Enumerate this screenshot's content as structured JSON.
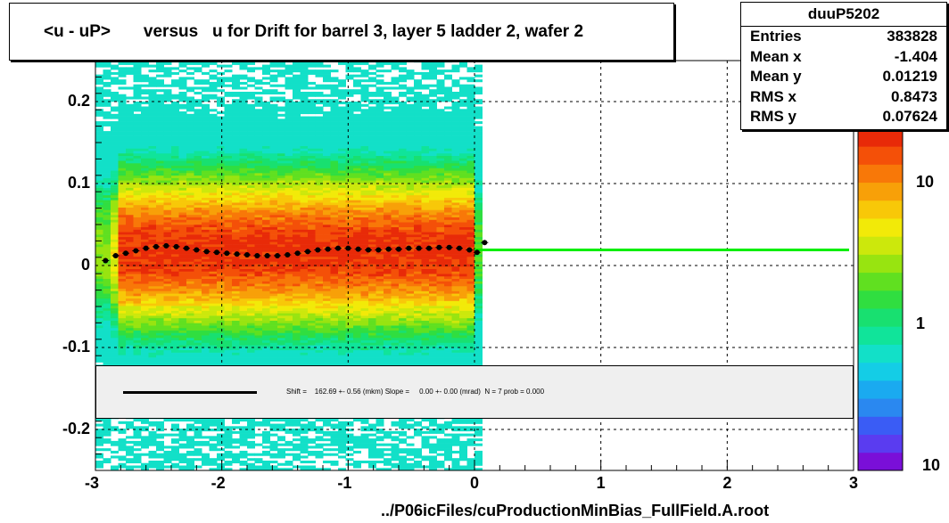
{
  "title": "<u - uP>       versus   u for Drift for barrel 3, layer 5 ladder 2, wafer 2",
  "stats": {
    "name": "duuP5202",
    "rows": [
      {
        "label": "Entries",
        "value": "383828"
      },
      {
        "label": "Mean x",
        "value": "-1.404"
      },
      {
        "label": "Mean y",
        "value": "0.01219"
      },
      {
        "label": "RMS x",
        "value": "0.8473"
      },
      {
        "label": "RMS y",
        "value": "0.07624"
      }
    ]
  },
  "fit_text": "Shift =    162.69 +- 0.56 (mkm) Slope =     0.00 +- 0.00 (mrad)  N = 7 prob = 0.000",
  "xaxis_title": "../P06icFiles/cuProductionMinBias_FullField.A.root",
  "colors": {
    "fit_line": "#00ee00",
    "profile": "#000000"
  },
  "chart_data": {
    "type": "heatmap",
    "title": "<u - uP>       versus   u for Drift for barrel 3, layer 5 ladder 2, wafer 2",
    "xlabel": "../P06icFiles/cuProductionMinBias_FullField.A.root",
    "ylabel": "",
    "xlim": [
      -3,
      3
    ],
    "ylim": [
      -0.25,
      0.25
    ],
    "xticks": [
      "-3",
      "-2",
      "-1",
      "0",
      "1",
      "2",
      "3"
    ],
    "yticks": [
      "-0.2",
      "-0.1",
      "0",
      "0.1",
      "0.2"
    ],
    "zscale": "log",
    "zticks": [
      "10",
      "1",
      "10"
    ],
    "grid": true,
    "fit_line_y": 0.019,
    "profile": {
      "x": [
        -2.92,
        -2.84,
        -2.76,
        -2.68,
        -2.6,
        -2.52,
        -2.44,
        -2.36,
        -2.28,
        -2.2,
        -2.12,
        -2.04,
        -1.96,
        -1.88,
        -1.8,
        -1.72,
        -1.64,
        -1.56,
        -1.48,
        -1.4,
        -1.32,
        -1.24,
        -1.16,
        -1.08,
        -1.0,
        -0.92,
        -0.84,
        -0.76,
        -0.68,
        -0.6,
        -0.52,
        -0.44,
        -0.36,
        -0.28,
        -0.2,
        -0.12,
        -0.04,
        0.02,
        0.08
      ],
      "y": [
        0.006,
        0.012,
        0.015,
        0.018,
        0.021,
        0.023,
        0.024,
        0.023,
        0.021,
        0.019,
        0.017,
        0.016,
        0.015,
        0.014,
        0.013,
        0.012,
        0.012,
        0.012,
        0.013,
        0.015,
        0.017,
        0.019,
        0.02,
        0.021,
        0.021,
        0.02,
        0.019,
        0.019,
        0.02,
        0.02,
        0.021,
        0.021,
        0.021,
        0.022,
        0.022,
        0.021,
        0.019,
        0.016,
        0.028
      ]
    }
  }
}
